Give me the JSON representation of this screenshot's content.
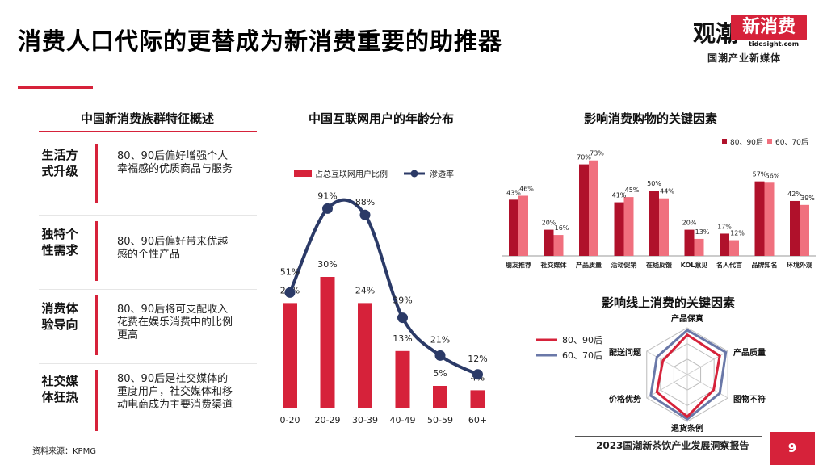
{
  "title": "消费人口代际的更替成为新消费重要的助推器",
  "brand": {
    "name": "观潮",
    "badge": "新消费",
    "site": "tidesight.com",
    "tagline": "国潮产业新媒体"
  },
  "left_panel": {
    "title": "中国新消费族群特征概述",
    "rows": [
      {
        "head": "生活方式升级",
        "text": "80、90后偏好增强个人幸福感的优质商品与服务"
      },
      {
        "head": "独特个性需求",
        "text": "80、90后偏好带来优越感的个性产品"
      },
      {
        "head": "消费体验导向",
        "text": "80、90后将可支配收入花费在娱乐消费中的比例更高"
      },
      {
        "head": "社交媒体狂热",
        "text": "80、90后是社交媒体的重度用户，社交媒体和移动电商成为主要消费渠道"
      }
    ]
  },
  "source": "资料来源：KPMG",
  "footer": "2023国潮新茶饮产业发展洞察报告",
  "page_number": "9",
  "colors": {
    "red": "#d6223a",
    "dark_red": "#b0112b",
    "pink": "#f0707e",
    "navy": "#2b3a67",
    "slate": "#6a78a8"
  },
  "chart_data": [
    {
      "type": "bar",
      "title": "中国互联网用户的年龄分布",
      "categories": [
        "0-20",
        "20-29",
        "30-39",
        "40-49",
        "50-59",
        "60+"
      ],
      "series": [
        {
          "name": "占总互联网用户比例",
          "type": "bar",
          "values": [
            24,
            30,
            24,
            13,
            5,
            4
          ],
          "labels": [
            "24%",
            "30%",
            "24%",
            "13%",
            "5%",
            "4%"
          ]
        },
        {
          "name": "渗透率",
          "type": "line",
          "values": [
            51,
            91,
            88,
            39,
            21,
            12
          ],
          "labels": [
            "51%",
            "91%",
            "88%",
            "39%",
            "21%",
            "12%"
          ]
        }
      ]
    },
    {
      "type": "bar",
      "title": "影响消费购物的关键因素",
      "categories": [
        "朋友推荐",
        "社交媒体",
        "产品质量",
        "活动促销",
        "在线反馈",
        "KOL意见",
        "名人代言",
        "品牌知名",
        "环境外观"
      ],
      "series": [
        {
          "name": "80、90后",
          "values": [
            43,
            20,
            70,
            41,
            50,
            20,
            17,
            57,
            42
          ],
          "labels": [
            "43%",
            "20%",
            "70%",
            "41%",
            "50%",
            "20%",
            "17%",
            "57%",
            "42%"
          ]
        },
        {
          "name": "60、70后",
          "values": [
            46,
            16,
            73,
            45,
            44,
            13,
            12,
            56,
            39
          ],
          "labels": [
            "46%",
            "16%",
            "73%",
            "45%",
            "44%",
            "13%",
            "12%",
            "56%",
            "39%"
          ]
        }
      ]
    },
    {
      "type": "radar",
      "title": "影响线上消费的关键因素",
      "axes": [
        "产品保真",
        "产品质量",
        "图物不符",
        "退货条例",
        "价格优势",
        "配送问题"
      ],
      "series": [
        {
          "name": "80、90后",
          "values": [
            0.85,
            0.8,
            0.65,
            0.9,
            0.75,
            0.6
          ]
        },
        {
          "name": "60、70后",
          "values": [
            0.95,
            0.95,
            0.8,
            0.95,
            0.9,
            0.75
          ]
        }
      ]
    }
  ]
}
